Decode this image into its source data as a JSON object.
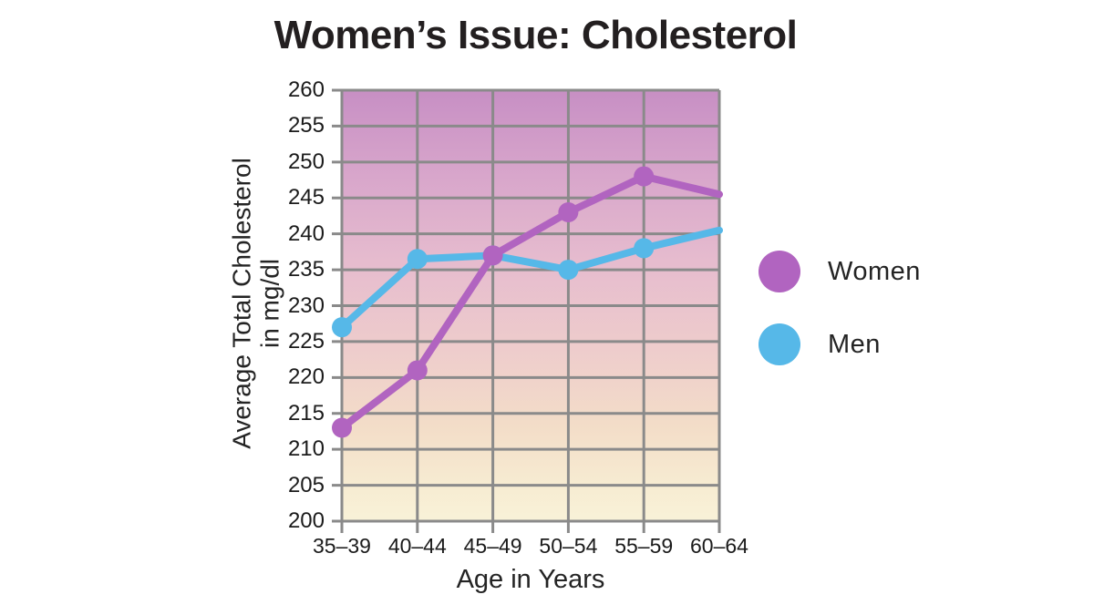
{
  "chart_data": {
    "type": "line",
    "title": "Women’s Issue: Cholesterol",
    "categories": [
      "35–39",
      "40–44",
      "45–49",
      "50–54",
      "55–59",
      "60–64"
    ],
    "series": [
      {
        "name": "Women",
        "color": "#b164c0",
        "values": [
          213,
          221,
          237,
          243,
          248,
          245.5
        ]
      },
      {
        "name": "Men",
        "color": "#56b8e8",
        "values": [
          227,
          236.5,
          237,
          235,
          238,
          240.5
        ]
      }
    ],
    "xlabel": "Age in Years",
    "ylabel": "Average Total Cholesterol in mg/dl",
    "ylabel_lines": [
      "Average Total Cholesterol",
      "in mg/dl"
    ],
    "ylim": [
      200,
      260
    ],
    "y_ticks": [
      200,
      205,
      210,
      215,
      220,
      225,
      230,
      235,
      240,
      245,
      250,
      255,
      260
    ],
    "grid": true,
    "grid_color": "#8a8a8a",
    "legend_position": "right",
    "last_point_marker": false,
    "background_gradient": [
      {
        "offset": "0%",
        "color": "#c78fc4"
      },
      {
        "offset": "20%",
        "color": "#d8a6cb"
      },
      {
        "offset": "40%",
        "color": "#e6bcce"
      },
      {
        "offset": "60%",
        "color": "#eecccc"
      },
      {
        "offset": "78%",
        "color": "#f3ddc8"
      },
      {
        "offset": "92%",
        "color": "#f7ecd2"
      },
      {
        "offset": "100%",
        "color": "#f8f2d8"
      }
    ]
  }
}
